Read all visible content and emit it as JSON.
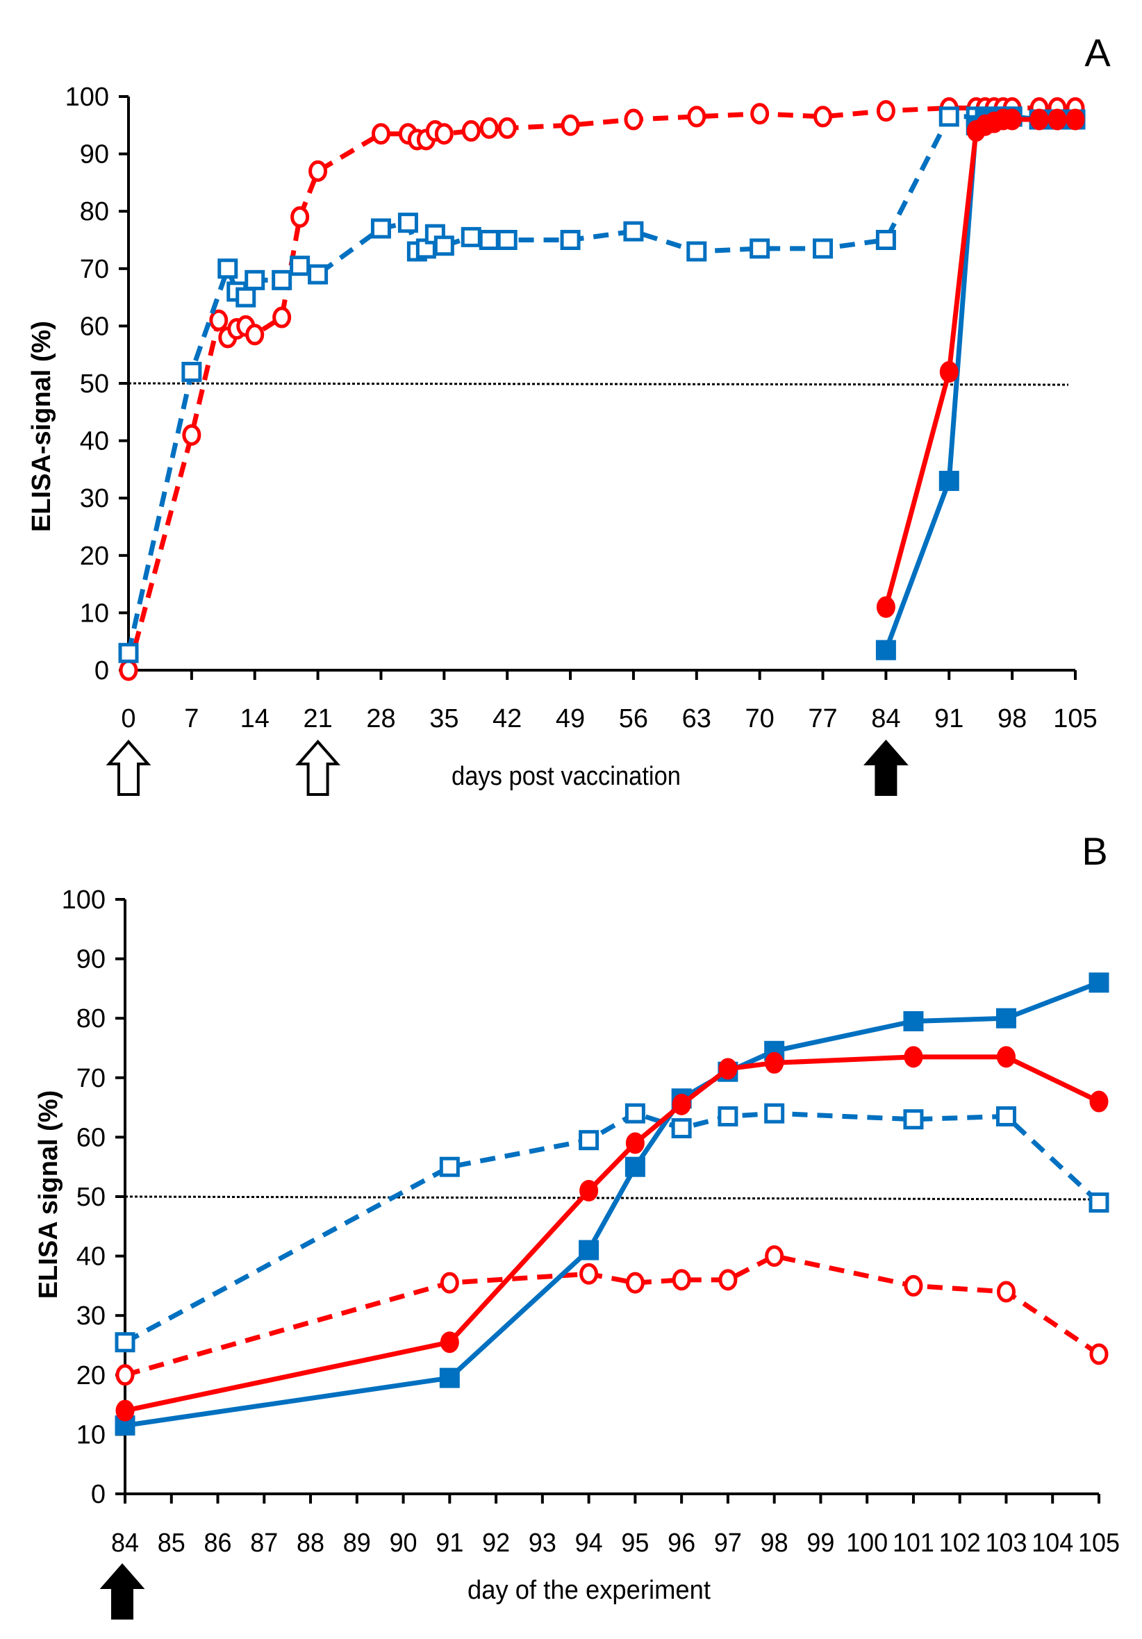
{
  "colors": {
    "red": "#ff0000",
    "blue": "#0070c0",
    "threshold": "#000000"
  },
  "chart_data": [
    {
      "type": "line",
      "panel_label": "A",
      "xlabel": "days post vaccination",
      "ylabel": "ELISA-signal (%)",
      "xlim": [
        0,
        105
      ],
      "ylim": [
        0,
        100
      ],
      "xticks": [
        0,
        7,
        14,
        21,
        28,
        35,
        42,
        49,
        56,
        63,
        70,
        77,
        84,
        91,
        98,
        105
      ],
      "yticks": [
        0,
        10,
        20,
        30,
        40,
        50,
        60,
        70,
        80,
        90,
        100
      ],
      "threshold": 50,
      "grid": false,
      "arrows": [
        {
          "day": 0,
          "style": "open"
        },
        {
          "day": 21,
          "style": "open"
        },
        {
          "day": 84,
          "style": "filled"
        }
      ],
      "series": [
        {
          "name": "red open circles (dashed)",
          "color": "red",
          "marker": "circle",
          "filled": false,
          "dashed": true,
          "x": [
            0,
            7,
            10,
            11,
            12,
            13,
            14,
            17,
            19,
            21,
            28,
            31,
            32,
            33,
            34,
            35,
            38,
            40,
            42,
            49,
            56,
            63,
            70,
            77,
            84,
            91,
            94,
            95,
            96,
            97,
            98,
            101,
            103,
            105
          ],
          "y": [
            0,
            41,
            61,
            58,
            59.5,
            60,
            58.5,
            61.5,
            79,
            87,
            93.5,
            93.5,
            92.5,
            92.5,
            94,
            93.5,
            94,
            94.5,
            94.5,
            95,
            96,
            96.5,
            97,
            96.5,
            97.5,
            98,
            98,
            98,
            98,
            98,
            98,
            98,
            98,
            98
          ]
        },
        {
          "name": "blue open squares (dashed)",
          "color": "blue",
          "marker": "square",
          "filled": false,
          "dashed": true,
          "x": [
            0,
            7,
            11,
            12,
            13,
            14,
            17,
            19,
            21,
            28,
            31,
            32,
            33,
            34,
            35,
            38,
            40,
            42,
            49,
            56,
            63,
            70,
            77,
            84,
            91,
            94,
            95,
            96,
            97,
            98,
            101,
            103,
            105
          ],
          "y": [
            3,
            52,
            70,
            66,
            65,
            68,
            68,
            70.5,
            69,
            77,
            78,
            73,
            73.5,
            76,
            74,
            75.5,
            75,
            75,
            75,
            76.5,
            73,
            73.5,
            73.5,
            75,
            96.5,
            96.5,
            96.5,
            96.5,
            96.5,
            96.5,
            96,
            96,
            96
          ]
        },
        {
          "name": "blue filled squares (solid)",
          "color": "blue",
          "marker": "square",
          "filled": true,
          "dashed": false,
          "x": [
            84,
            91,
            94,
            95,
            96,
            97,
            98,
            101,
            103,
            105
          ],
          "y": [
            3.5,
            33,
            95,
            96,
            96,
            96.5,
            96.5,
            96,
            96,
            96
          ]
        },
        {
          "name": "red filled circles (solid)",
          "color": "red",
          "marker": "circle",
          "filled": true,
          "dashed": false,
          "x": [
            84,
            91,
            94,
            95,
            96,
            97,
            98,
            101,
            103,
            105
          ],
          "y": [
            11,
            52,
            94,
            95,
            95.5,
            96,
            96,
            96,
            96,
            96
          ]
        }
      ]
    },
    {
      "type": "line",
      "panel_label": "B",
      "xlabel": "day of the experiment",
      "ylabel": "ELISA signal (%)",
      "categories": [
        "84",
        "85",
        "86",
        "87",
        "88",
        "89",
        "90",
        "91",
        "92",
        "93",
        "94",
        "95",
        "96",
        "97",
        "98",
        "99",
        "100",
        "101",
        "102",
        "103",
        "104",
        "105"
      ],
      "ylim": [
        0,
        100
      ],
      "yticks": [
        0,
        10,
        20,
        30,
        40,
        50,
        60,
        70,
        80,
        90,
        100
      ],
      "threshold": 50,
      "grid": false,
      "arrows": [
        {
          "day": "84",
          "style": "filled"
        }
      ],
      "x": [
        "84",
        "91",
        "94",
        "95",
        "96",
        "97",
        "98",
        "101",
        "103",
        "105"
      ],
      "series": [
        {
          "name": "blue open squares (dashed)",
          "color": "blue",
          "marker": "square",
          "filled": false,
          "dashed": true,
          "y": [
            25.5,
            55,
            59.5,
            64,
            61.5,
            63.5,
            64,
            63,
            63.5,
            49
          ]
        },
        {
          "name": "red open circles (dashed)",
          "color": "red",
          "marker": "circle",
          "filled": false,
          "dashed": true,
          "y": [
            20,
            35.5,
            37,
            35.5,
            36,
            36,
            40,
            35,
            34,
            23.5
          ]
        },
        {
          "name": "blue filled squares (solid)",
          "color": "blue",
          "marker": "square",
          "filled": true,
          "dashed": false,
          "y": [
            11.5,
            19.5,
            41,
            55,
            66.5,
            71,
            74.5,
            79.5,
            80,
            86
          ]
        },
        {
          "name": "red filled circles (solid)",
          "color": "red",
          "marker": "circle",
          "filled": true,
          "dashed": false,
          "y": [
            14,
            25.5,
            51,
            59,
            65.5,
            71.5,
            72.5,
            73.5,
            73.5,
            66
          ]
        }
      ]
    }
  ]
}
